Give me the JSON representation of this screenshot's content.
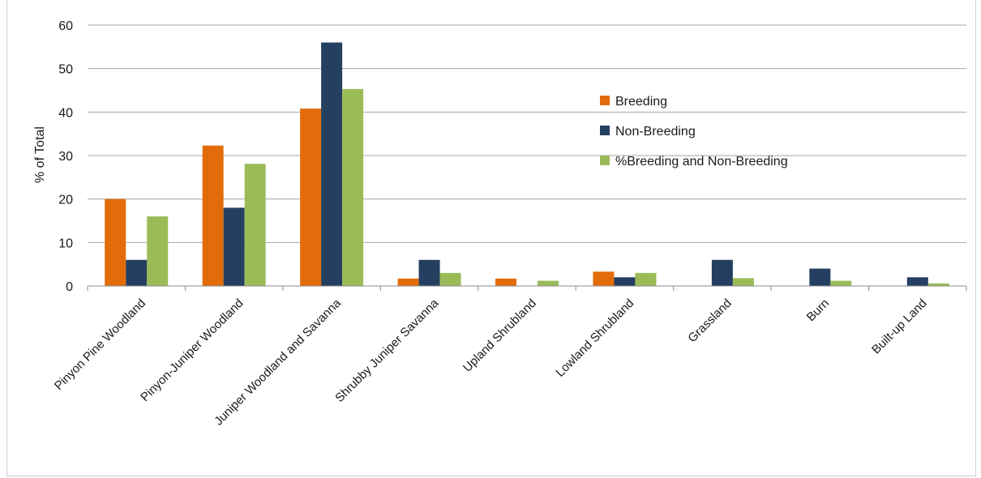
{
  "chart_data": {
    "type": "bar",
    "categories": [
      "Pinyon Pine Woodland",
      "Pinyon-Juniper Woodland",
      "Juniper Woodland and Savanna",
      "Shrubby Juniper Savanna",
      "Upland Shrubland",
      "Lowland Shrubland",
      "Grassland",
      "Burn",
      "Built-up Land"
    ],
    "series": [
      {
        "name": "Breeding",
        "color": "#e36c0a",
        "values": [
          20,
          32.3,
          40.8,
          1.7,
          1.7,
          3.3,
          0,
          0,
          0
        ]
      },
      {
        "name": "Non-Breeding",
        "color": "#243f60",
        "values": [
          6,
          18,
          56,
          6,
          0,
          2,
          6,
          4,
          2
        ]
      },
      {
        "name": "%Breeding and Non-Breeding",
        "color": "#9bbb59",
        "values": [
          16,
          28.1,
          45.3,
          3,
          1.2,
          3,
          1.8,
          1.2,
          0.6
        ]
      }
    ],
    "title": "",
    "xlabel": "",
    "ylabel": "% of Total",
    "ylim": [
      0,
      60
    ],
    "yticks": [
      "0",
      "10",
      "20",
      "30",
      "40",
      "50",
      "60"
    ],
    "grid": true,
    "legend_position": "inside-top-right"
  }
}
